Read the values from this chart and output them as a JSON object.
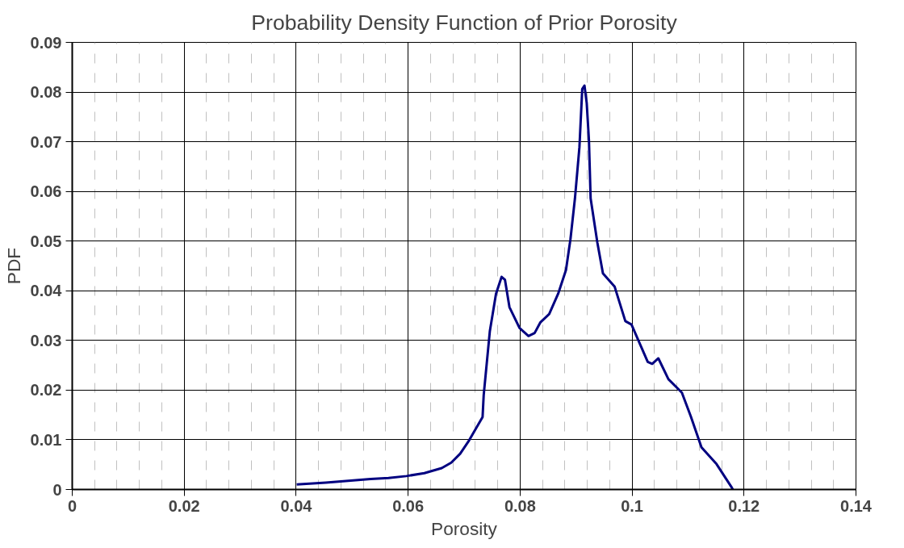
{
  "chart_data": {
    "type": "line",
    "title": "Probability Density Function of Prior Porosity",
    "xlabel": "Porosity",
    "ylabel": "PDF",
    "xlim": [
      0,
      0.14
    ],
    "xticks": [
      0,
      0.02,
      0.04,
      0.06,
      0.08,
      0.1,
      0.12,
      0.14
    ],
    "ylim": [
      0,
      0.09
    ],
    "yticks": [
      0,
      0.01,
      0.02,
      0.03,
      0.04,
      0.05,
      0.06,
      0.07,
      0.08,
      0.09
    ],
    "grid": true,
    "marker": "none",
    "line_style": "solid",
    "series": [
      {
        "color": "#000080",
        "x": [
          0.0401,
          0.0453,
          0.0533,
          0.0565,
          0.0597,
          0.0629,
          0.066,
          0.0677,
          0.0693,
          0.0709,
          0.0733,
          0.0735,
          0.0746,
          0.0757,
          0.0767,
          0.0773,
          0.0781,
          0.0799,
          0.0815,
          0.0826,
          0.0836,
          0.0852,
          0.0868,
          0.0882,
          0.089,
          0.0898,
          0.0906,
          0.0911,
          0.0915,
          0.0919,
          0.0923,
          0.0926,
          0.0938,
          0.0948,
          0.0969,
          0.0988,
          0.0999,
          0.1028,
          0.1036,
          0.1047,
          0.1065,
          0.1089,
          0.1105,
          0.1124,
          0.1151,
          0.1177,
          0.118
        ],
        "values": [
          0.001,
          0.0014,
          0.0021,
          0.0023,
          0.0027,
          0.0033,
          0.0043,
          0.0054,
          0.0072,
          0.0099,
          0.0146,
          0.019,
          0.0319,
          0.0394,
          0.0428,
          0.0422,
          0.0367,
          0.0325,
          0.0309,
          0.0315,
          0.0336,
          0.0353,
          0.0394,
          0.0442,
          0.0504,
          0.0586,
          0.0689,
          0.0806,
          0.0813,
          0.0778,
          0.0703,
          0.0586,
          0.0497,
          0.0435,
          0.0408,
          0.0339,
          0.0332,
          0.0257,
          0.0253,
          0.0264,
          0.0222,
          0.0195,
          0.0147,
          0.0085,
          0.0051,
          0.0006,
          0
        ]
      }
    ]
  }
}
